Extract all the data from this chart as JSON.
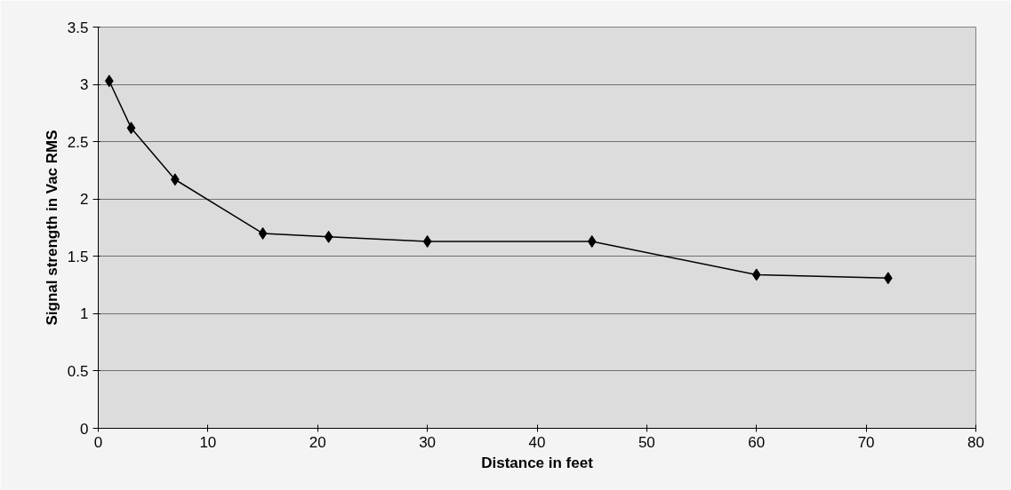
{
  "chart_data": {
    "type": "line",
    "xlabel": "Distance in feet",
    "ylabel": "Signal strength in Vac RMS",
    "x": [
      1,
      3,
      7,
      15,
      21,
      30,
      45,
      60,
      72
    ],
    "series": [
      {
        "color": "#000000",
        "values": [
          3.03,
          2.62,
          2.17,
          1.7,
          1.67,
          1.63,
          1.63,
          1.34,
          1.31
        ]
      }
    ],
    "xlim": [
      0,
      80
    ],
    "xticks": [
      0,
      10,
      20,
      30,
      40,
      50,
      60,
      70,
      80
    ],
    "ylim": [
      0,
      3.5
    ],
    "yticks": [
      0,
      {
        "value": 0.5,
        "label": "0.5"
      },
      1,
      {
        "value": 1.5,
        "label": "1.5"
      },
      2,
      {
        "value": 2.5,
        "label": "2.5"
      },
      3,
      {
        "value": 3.5,
        "label": "3.5"
      }
    ],
    "grid": "y",
    "marker": "diamond",
    "line_style": "solid"
  }
}
